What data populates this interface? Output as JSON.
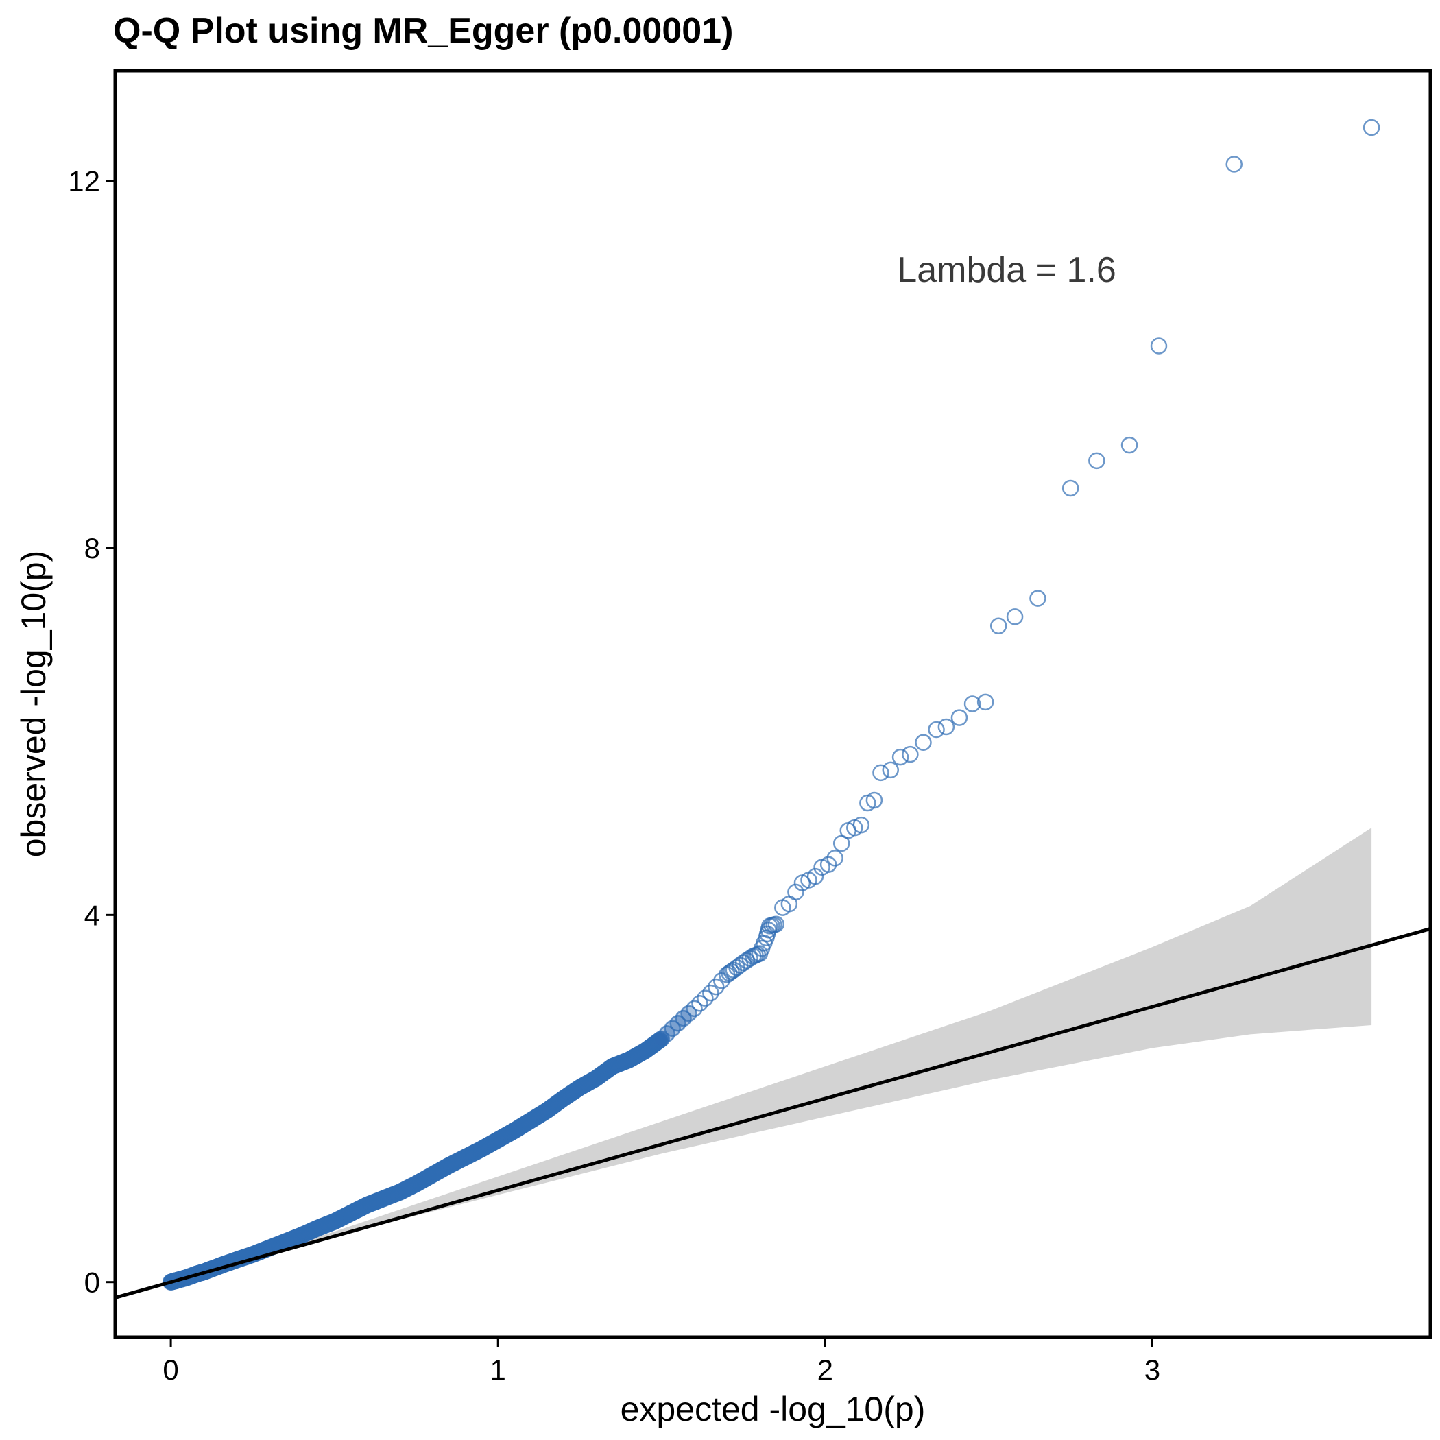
{
  "chart_data": {
    "type": "scatter",
    "title": "Q-Q Plot using MR_Egger (p0.00001)",
    "xlabel": "expected -log_10(p)",
    "ylabel": "observed -log_10(p)",
    "xlim": [
      -0.17,
      3.85
    ],
    "ylim": [
      -0.6,
      13.2
    ],
    "x_ticks": [
      0,
      1,
      2,
      3
    ],
    "y_ticks": [
      0,
      4,
      8,
      12
    ],
    "annotation": "Lambda = 1.6",
    "grid": false,
    "legend": "none",
    "colors": {
      "points": "#2f6cb3",
      "reference_line": "#000000",
      "confidence_band": "#d3d3d3"
    },
    "reference_line": {
      "slope": 1,
      "intercept": 0
    },
    "confidence_band": {
      "x": [
        0.0,
        0.5,
        1.0,
        1.5,
        2.0,
        2.5,
        3.0,
        3.3,
        3.67
      ],
      "upper": [
        0.0,
        0.55,
        1.15,
        1.75,
        2.35,
        2.95,
        3.65,
        4.1,
        4.95
      ],
      "lower": [
        0.0,
        0.5,
        0.95,
        1.4,
        1.8,
        2.2,
        2.55,
        2.7,
        2.8
      ]
    },
    "points": [
      [
        0.0,
        0.0
      ],
      [
        0.02,
        0.02
      ],
      [
        0.05,
        0.05
      ],
      [
        0.08,
        0.09
      ],
      [
        0.1,
        0.11
      ],
      [
        0.13,
        0.15
      ],
      [
        0.16,
        0.19
      ],
      [
        0.2,
        0.24
      ],
      [
        0.25,
        0.3
      ],
      [
        0.3,
        0.37
      ],
      [
        0.35,
        0.44
      ],
      [
        0.4,
        0.51
      ],
      [
        0.45,
        0.59
      ],
      [
        0.5,
        0.66
      ],
      [
        0.55,
        0.75
      ],
      [
        0.6,
        0.84
      ],
      [
        0.65,
        0.91
      ],
      [
        0.7,
        0.98
      ],
      [
        0.75,
        1.07
      ],
      [
        0.8,
        1.17
      ],
      [
        0.85,
        1.27
      ],
      [
        0.9,
        1.36
      ],
      [
        0.95,
        1.45
      ],
      [
        1.0,
        1.55
      ],
      [
        1.05,
        1.65
      ],
      [
        1.1,
        1.76
      ],
      [
        1.15,
        1.87
      ],
      [
        1.2,
        2.0
      ],
      [
        1.25,
        2.12
      ],
      [
        1.3,
        2.22
      ],
      [
        1.35,
        2.35
      ],
      [
        1.4,
        2.42
      ],
      [
        1.45,
        2.52
      ],
      [
        1.5,
        2.65
      ],
      [
        1.55,
        2.82
      ],
      [
        1.6,
        2.98
      ],
      [
        1.65,
        3.15
      ],
      [
        1.7,
        3.35
      ],
      [
        1.72,
        3.4
      ],
      [
        1.75,
        3.48
      ],
      [
        1.78,
        3.55
      ],
      [
        1.8,
        3.58
      ],
      [
        1.82,
        3.75
      ],
      [
        1.83,
        3.88
      ],
      [
        1.85,
        3.9
      ],
      [
        1.87,
        4.08
      ],
      [
        1.89,
        4.12
      ],
      [
        1.91,
        4.25
      ],
      [
        1.93,
        4.35
      ],
      [
        1.95,
        4.38
      ],
      [
        1.97,
        4.42
      ],
      [
        1.99,
        4.52
      ],
      [
        2.01,
        4.55
      ],
      [
        2.03,
        4.62
      ],
      [
        2.05,
        4.78
      ],
      [
        2.07,
        4.92
      ],
      [
        2.09,
        4.95
      ],
      [
        2.11,
        4.98
      ],
      [
        2.13,
        5.22
      ],
      [
        2.15,
        5.25
      ],
      [
        2.17,
        5.55
      ],
      [
        2.2,
        5.58
      ],
      [
        2.23,
        5.72
      ],
      [
        2.26,
        5.75
      ],
      [
        2.3,
        5.88
      ],
      [
        2.34,
        6.02
      ],
      [
        2.37,
        6.05
      ],
      [
        2.41,
        6.15
      ],
      [
        2.45,
        6.3
      ],
      [
        2.49,
        6.32
      ],
      [
        2.53,
        7.15
      ],
      [
        2.58,
        7.25
      ],
      [
        2.65,
        7.45
      ],
      [
        2.75,
        8.65
      ],
      [
        2.83,
        8.95
      ],
      [
        2.93,
        9.12
      ],
      [
        3.02,
        10.2
      ],
      [
        3.25,
        12.18
      ],
      [
        3.67,
        12.58
      ]
    ]
  }
}
